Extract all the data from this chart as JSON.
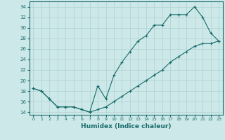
{
  "xlabel": "Humidex (Indice chaleur)",
  "background_color": "#cce8e8",
  "grid_color": "#b0d0d0",
  "line_color": "#1a6b6b",
  "xlim": [
    -0.5,
    23.5
  ],
  "ylim": [
    13.5,
    35.0
  ],
  "xticks": [
    0,
    1,
    2,
    3,
    4,
    5,
    6,
    7,
    8,
    9,
    10,
    11,
    12,
    13,
    14,
    15,
    16,
    17,
    18,
    19,
    20,
    21,
    22,
    23
  ],
  "yticks": [
    14,
    16,
    18,
    20,
    22,
    24,
    26,
    28,
    30,
    32,
    34
  ],
  "line1_x": [
    0,
    1,
    2,
    3,
    4,
    5,
    6,
    7,
    8,
    9,
    10,
    11,
    12,
    13,
    14,
    15,
    16,
    17,
    18,
    19,
    20,
    21,
    22,
    23
  ],
  "line1_y": [
    18.5,
    18.0,
    16.5,
    15.0,
    15.0,
    15.0,
    14.5,
    14.0,
    19.0,
    16.5,
    21.0,
    23.5,
    25.5,
    27.5,
    28.5,
    30.5,
    30.5,
    32.5,
    32.5,
    32.5,
    34.0,
    32.0,
    29.0,
    27.5
  ],
  "line2_x": [
    0,
    1,
    2,
    3,
    4,
    5,
    6,
    7,
    8,
    9,
    10,
    11,
    12,
    13,
    14,
    15,
    16,
    17,
    18,
    19,
    20,
    21,
    22,
    23
  ],
  "line2_y": [
    18.5,
    18.0,
    16.5,
    15.0,
    15.0,
    15.0,
    14.5,
    14.0,
    14.5,
    15.0,
    16.0,
    17.0,
    18.0,
    19.0,
    20.0,
    21.0,
    22.0,
    23.5,
    24.5,
    25.5,
    26.5,
    27.0,
    27.0,
    27.5
  ]
}
